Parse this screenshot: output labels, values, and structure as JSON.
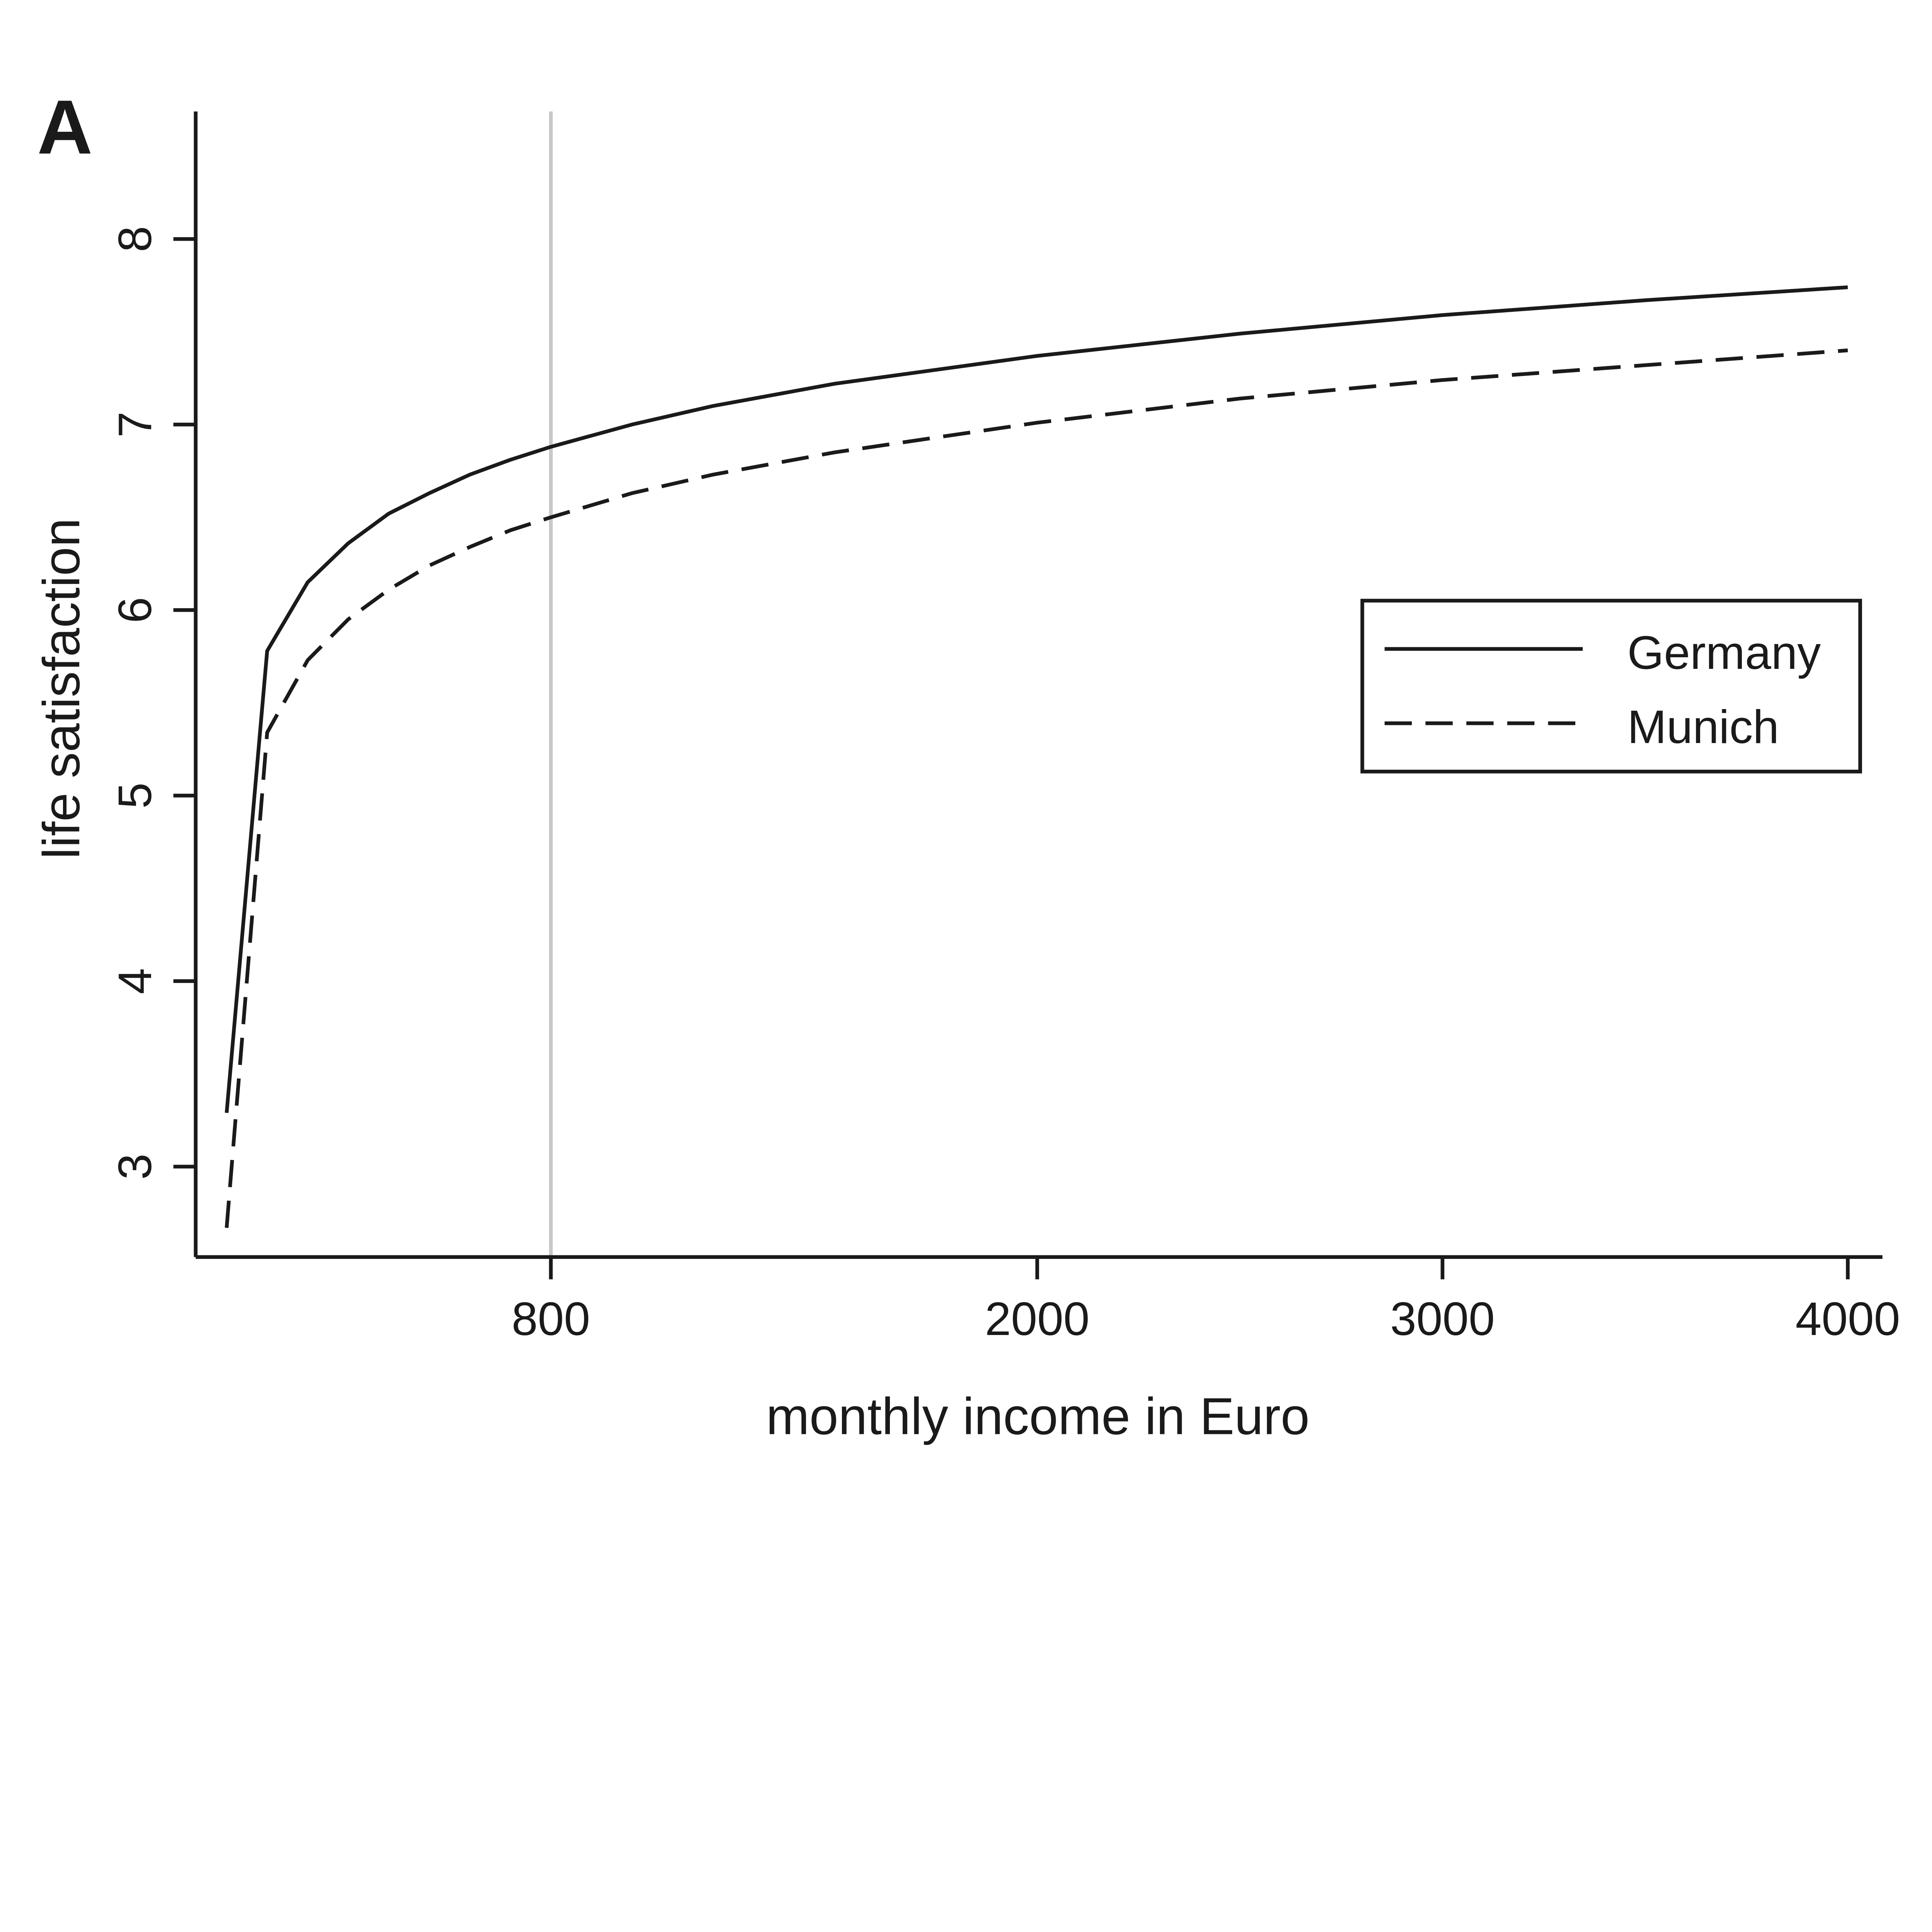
{
  "panel_label": "A",
  "chart_data": {
    "type": "line",
    "title": "",
    "xlabel": "monthly income in Euro",
    "ylabel": "life satisfaction",
    "xlim": [
      0,
      4000
    ],
    "ylim": [
      2.5,
      8.6
    ],
    "x_ticks": [
      800,
      2000,
      3000,
      4000
    ],
    "x_tick_labels": [
      "800",
      "2000",
      "3000",
      "4000"
    ],
    "y_ticks": [
      3,
      4,
      5,
      6,
      7,
      8
    ],
    "y_tick_labels": [
      "3",
      "4",
      "5",
      "6",
      "7",
      "8"
    ],
    "reference_line_x": 800,
    "reference_line_color": "#c8c8c8",
    "grid": false,
    "legend_position": "right",
    "x": [
      0,
      100,
      200,
      300,
      400,
      500,
      600,
      700,
      800,
      1000,
      1200,
      1500,
      2000,
      2500,
      3000,
      3500,
      4000
    ],
    "series": [
      {
        "name": "Germany",
        "style": "solid",
        "color": "#1a1a1a",
        "values": [
          3.29,
          5.78,
          6.15,
          6.36,
          6.52,
          6.63,
          6.73,
          6.81,
          6.88,
          7.0,
          7.1,
          7.22,
          7.37,
          7.49,
          7.59,
          7.67,
          7.74
        ]
      },
      {
        "name": "Munich",
        "style": "dashed",
        "color": "#1a1a1a",
        "values": [
          2.67,
          5.34,
          5.73,
          5.95,
          6.11,
          6.24,
          6.34,
          6.43,
          6.5,
          6.63,
          6.73,
          6.85,
          7.01,
          7.14,
          7.24,
          7.32,
          7.4
        ]
      }
    ]
  }
}
